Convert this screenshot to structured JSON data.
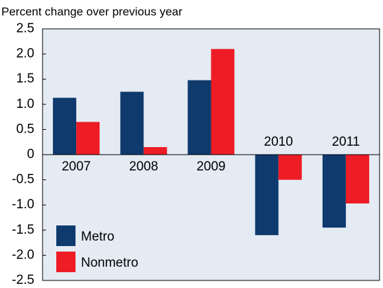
{
  "chart_data": {
    "type": "bar",
    "title": "Percent change over previous year",
    "categories": [
      "2007",
      "2008",
      "2009",
      "2010",
      "2011"
    ],
    "series": [
      {
        "name": "Metro",
        "color": "#0f3a6e",
        "values": [
          1.13,
          1.25,
          1.48,
          -1.6,
          -1.45
        ]
      },
      {
        "name": "Nonmetro",
        "color": "#ee1c25",
        "values": [
          0.65,
          0.15,
          2.1,
          -0.5,
          -0.97
        ]
      }
    ],
    "ylim": [
      -2.5,
      2.5
    ],
    "yticks": [
      -2.5,
      {
        "value": -2,
        "label": "-2.0"
      },
      -1.5,
      {
        "value": -1,
        "label": "-1.0"
      },
      -0.5,
      0,
      0.5,
      {
        "value": 1,
        "label": "1.0"
      },
      1.5,
      {
        "value": 2,
        "label": "2.0"
      },
      2.5
    ],
    "background": "#e4ebf3",
    "legend": "lower-left"
  }
}
